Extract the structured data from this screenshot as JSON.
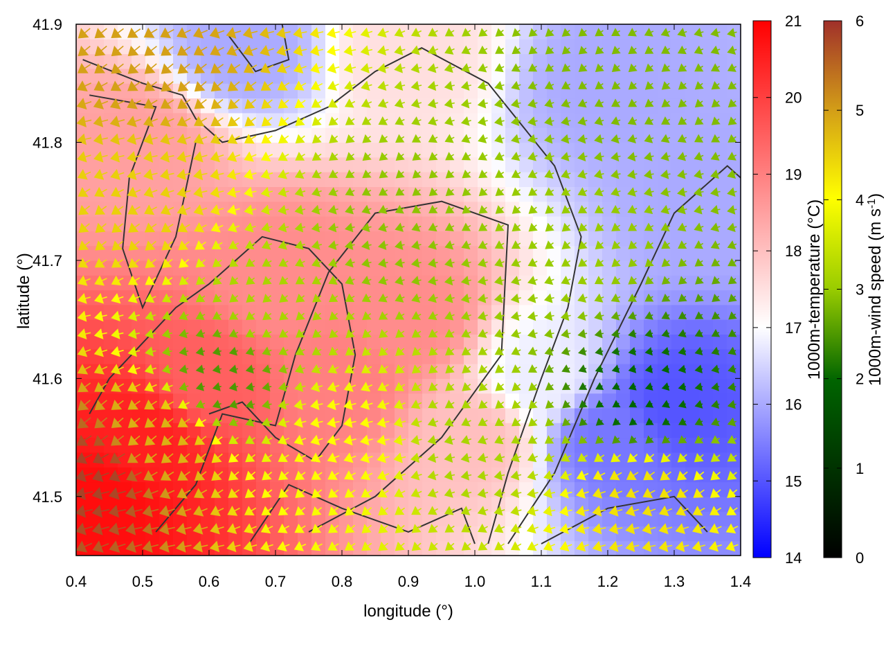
{
  "chart_data": {
    "type": "heatmap",
    "title": "",
    "xlabel": "longitude (°)",
    "ylabel": "latitude (°)",
    "xlim": [
      0.4,
      1.4
    ],
    "ylim": [
      41.45,
      41.9
    ],
    "xticks": [
      0.4,
      0.5,
      0.6,
      0.7,
      0.8,
      0.9,
      1.0,
      1.1,
      1.2,
      1.3,
      1.4
    ],
    "xtick_labels": [
      "0.4",
      "0.5",
      "0.6",
      "0.7",
      "0.8",
      "0.9",
      "1.0",
      "1.1",
      "1.2",
      "1.3",
      "1.4"
    ],
    "yticks": [
      41.5,
      41.6,
      41.7,
      41.8,
      41.9
    ],
    "ytick_labels": [
      "41.5",
      "41.6",
      "41.7",
      "41.8",
      "41.9"
    ],
    "temperature_colorbar": {
      "label": "1000m-temperature (°C)",
      "range": [
        14,
        21
      ],
      "ticks": [
        "14",
        "15",
        "16",
        "17",
        "18",
        "19",
        "20",
        "21"
      ],
      "colors": [
        "#0000ff",
        "#ffffff",
        "#ff0000"
      ]
    },
    "windspeed_colorbar": {
      "label_prefix": "1000m-wind speed (m s",
      "label_exponent": "-1",
      "label_suffix": ")",
      "range": [
        0,
        6
      ],
      "ticks": [
        "0",
        "1",
        "2",
        "3",
        "4",
        "5",
        "6"
      ],
      "colors": [
        "#000000",
        "#006400",
        "#99cc00",
        "#ffff00",
        "#d4a017",
        "#a0302a"
      ]
    },
    "temperature_field_samples": [
      {
        "lon": 0.43,
        "lat": 41.5,
        "t": 20.8
      },
      {
        "lon": 0.5,
        "lat": 41.55,
        "t": 20.5
      },
      {
        "lon": 0.6,
        "lat": 41.6,
        "t": 19.5
      },
      {
        "lon": 0.7,
        "lat": 41.68,
        "t": 18.8
      },
      {
        "lon": 0.8,
        "lat": 41.6,
        "t": 19.0
      },
      {
        "lon": 0.9,
        "lat": 41.65,
        "t": 18.8
      },
      {
        "lon": 1.0,
        "lat": 41.55,
        "t": 18.0
      },
      {
        "lon": 1.1,
        "lat": 41.6,
        "t": 16.8
      },
      {
        "lon": 1.2,
        "lat": 41.55,
        "t": 15.4
      },
      {
        "lon": 1.3,
        "lat": 41.58,
        "t": 15.0
      },
      {
        "lon": 1.35,
        "lat": 41.75,
        "t": 16.0
      },
      {
        "lon": 1.2,
        "lat": 41.85,
        "t": 16.0
      },
      {
        "lon": 0.9,
        "lat": 41.88,
        "t": 17.5
      },
      {
        "lon": 0.65,
        "lat": 41.88,
        "t": 16.0
      },
      {
        "lon": 0.5,
        "lat": 41.8,
        "t": 18.5
      }
    ],
    "wind_speed_samples": [
      {
        "lon": 0.43,
        "lat": 41.52,
        "s": 5.8
      },
      {
        "lon": 0.52,
        "lat": 41.55,
        "s": 4.6
      },
      {
        "lon": 0.5,
        "lat": 41.75,
        "s": 4.2
      },
      {
        "lon": 0.5,
        "lat": 41.87,
        "s": 4.8
      },
      {
        "lon": 0.62,
        "lat": 41.6,
        "s": 1.8
      },
      {
        "lon": 0.7,
        "lat": 41.66,
        "s": 2.6
      },
      {
        "lon": 0.88,
        "lat": 41.72,
        "s": 2.3
      },
      {
        "lon": 0.8,
        "lat": 41.55,
        "s": 3.6
      },
      {
        "lon": 1.0,
        "lat": 41.55,
        "s": 2.6
      },
      {
        "lon": 1.12,
        "lat": 41.7,
        "s": 2.4
      },
      {
        "lon": 1.25,
        "lat": 41.58,
        "s": 1.2
      },
      {
        "lon": 1.25,
        "lat": 41.5,
        "s": 4.0
      },
      {
        "lon": 1.25,
        "lat": 41.85,
        "s": 2.2
      }
    ],
    "wind_direction": "from east-northeast (vectors pointing to the west-southwest)"
  }
}
